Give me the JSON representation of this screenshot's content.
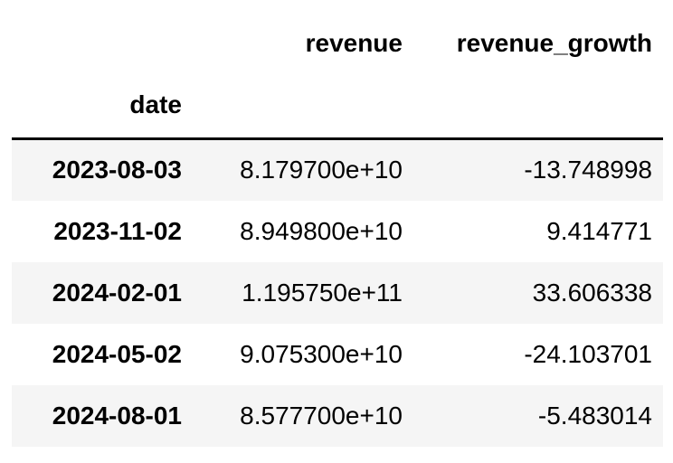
{
  "table": {
    "columns": [
      "revenue",
      "revenue_growth"
    ],
    "index_name": "date",
    "rows": [
      {
        "date": "2023-08-03",
        "revenue": "8.179700e+10",
        "revenue_growth": "-13.748998"
      },
      {
        "date": "2023-11-02",
        "revenue": "8.949800e+10",
        "revenue_growth": "9.414771"
      },
      {
        "date": "2024-02-01",
        "revenue": "1.195750e+11",
        "revenue_growth": "33.606338"
      },
      {
        "date": "2024-05-02",
        "revenue": "9.075300e+10",
        "revenue_growth": "-24.103701"
      },
      {
        "date": "2024-08-01",
        "revenue": "8.577700e+10",
        "revenue_growth": "-5.483014"
      }
    ]
  }
}
